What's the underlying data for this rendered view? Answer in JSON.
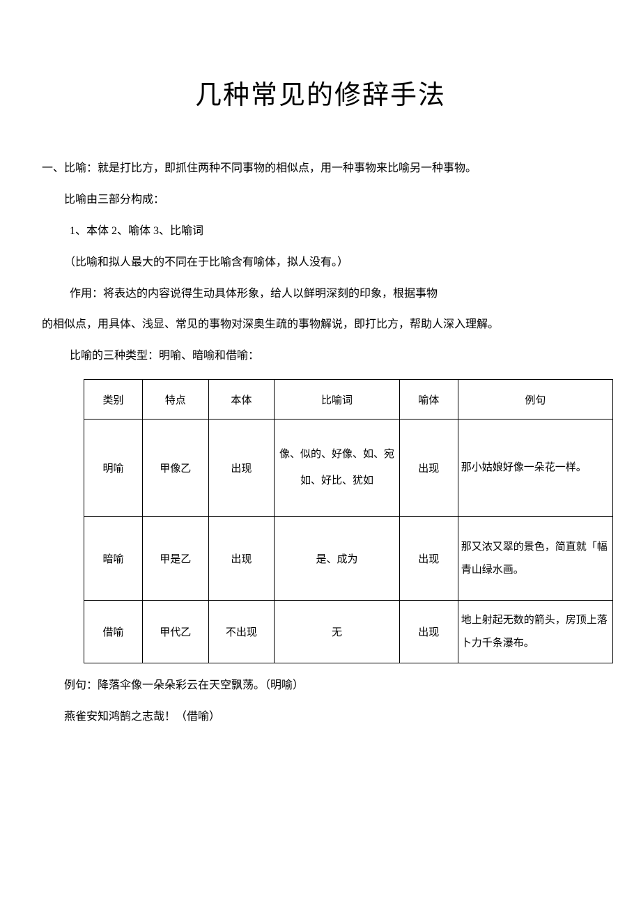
{
  "title": "几种常见的修辞手法",
  "section1": {
    "heading": "一、比喻：就是打比方，即抓住两种不同事物的相似点，用一种事物来比喻另一种事物。",
    "line2": "比喻由三部分构成：",
    "line3": "1、本体 2、喻体 3、比喻词",
    "line4": "（比喻和拟人最大的不同在于比喻含有喻体，拟人没有。）",
    "line5": "作用：将表达的内容说得生动具体形象，给人以鲜明深刻的印象，根据事物",
    "line6": "的相似点，用具体、浅显、常见的事物对深奥生疏的事物解说，即打比方，帮助人深入理解。",
    "line7": "比喻的三种类型：明喻、暗喻和借喻："
  },
  "table": {
    "headers": {
      "type": "类别",
      "feature": "特点",
      "benti": "本体",
      "biyuci": "比喻词",
      "yuti": "喻体",
      "example": "例句"
    },
    "rows": [
      {
        "type": "明喻",
        "feature": "甲像乙",
        "benti": "出现",
        "biyuci": "像、似的、好像、如、宛如、好比、犹如",
        "yuti": "出现",
        "example": "那小姑娘好像一朵花一样。"
      },
      {
        "type": "暗喻",
        "feature": "甲是乙",
        "benti": "出现",
        "biyuci": "是、成为",
        "yuti": "出现",
        "example": "那又浓又翠的景色，简直就「幅青山绿水画。"
      },
      {
        "type": "借喻",
        "feature": "甲代乙",
        "benti": "不出现",
        "biyuci": "无",
        "yuti": "出现",
        "example": "地上射起无数的箭头，房顶上落卜力千条瀑布。"
      }
    ]
  },
  "footer": {
    "line1": "例句：降落伞像一朵朵彩云在天空飘荡。（明喻）",
    "line2": "燕雀安知鸿鹄之志哉！（借喻）"
  },
  "colors": {
    "background": "#ffffff",
    "text": "#000000",
    "border": "#000000"
  },
  "typography": {
    "title_fontsize": 38,
    "body_fontsize": 16,
    "table_fontsize": 15,
    "font_family": "SimSun"
  }
}
